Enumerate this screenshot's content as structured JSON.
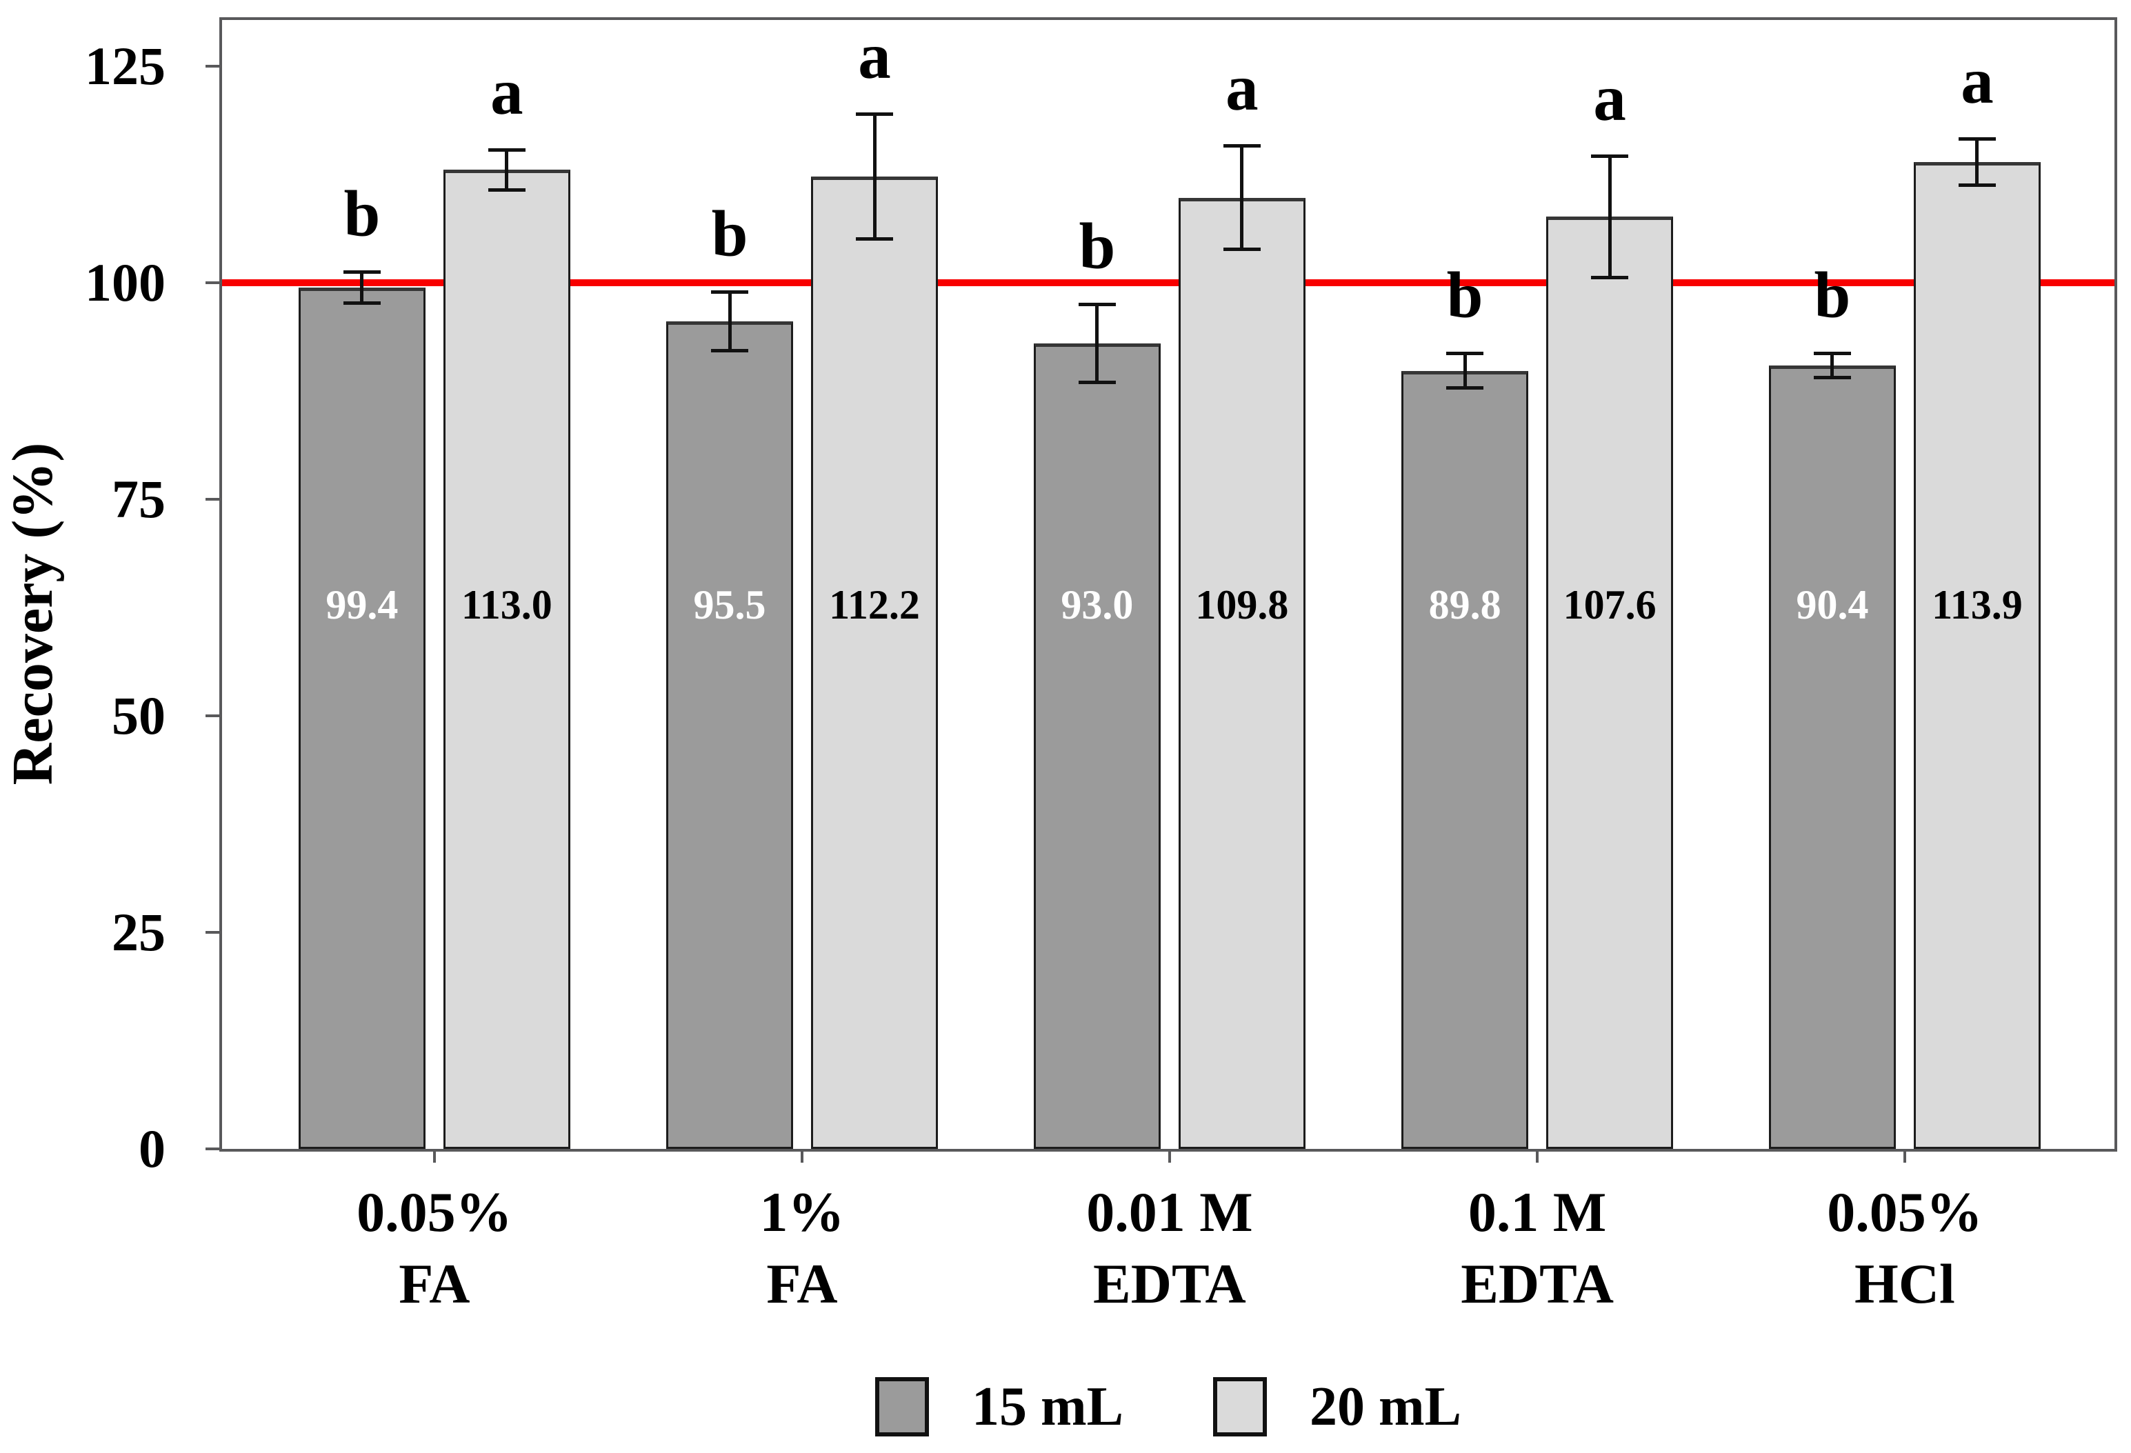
{
  "chart_data": {
    "type": "bar",
    "title": "",
    "xlabel": "",
    "ylabel": "Recovery (%)",
    "ylim": [
      0,
      130.3
    ],
    "yticks": [
      0,
      25,
      50,
      75,
      100,
      125
    ],
    "grid": false,
    "legend_position": "bottom",
    "reference_line": {
      "y": 100,
      "color": "#f80000"
    },
    "categories": [
      {
        "line1": "0.05%",
        "line2": "FA"
      },
      {
        "line1": "1%",
        "line2": "FA"
      },
      {
        "line1": "0.01 M",
        "line2": "EDTA"
      },
      {
        "line1": "0.1 M",
        "line2": "EDTA"
      },
      {
        "line1": "0.05%",
        "line2": "HCl"
      }
    ],
    "series": [
      {
        "name": "15 mL",
        "color": "#9b9b9b",
        "value_label_color": "#ffffff",
        "values": [
          99.4,
          95.5,
          93.0,
          89.8,
          90.4
        ],
        "value_labels": [
          "99.4",
          "95.5",
          "93.0",
          "89.8",
          "90.4"
        ],
        "errors": [
          2.0,
          3.6,
          4.7,
          2.2,
          1.6
        ],
        "sig_letters": [
          "b",
          "b",
          "b",
          "b",
          "b"
        ]
      },
      {
        "name": "20 mL",
        "color": "#dadada",
        "value_label_color": "#000000",
        "values": [
          113.0,
          112.2,
          109.8,
          107.6,
          113.9
        ],
        "value_labels": [
          "113.0",
          "112.2",
          "109.8",
          "107.6",
          "113.9"
        ],
        "errors": [
          2.5,
          7.4,
          6.2,
          7.2,
          2.9
        ],
        "sig_letters": [
          "a",
          "a",
          "a",
          "a",
          "a"
        ]
      }
    ]
  },
  "colors": {
    "frame": "#59595b",
    "error_bar": "#111111",
    "text": "#000000",
    "background": "#ffffff"
  }
}
